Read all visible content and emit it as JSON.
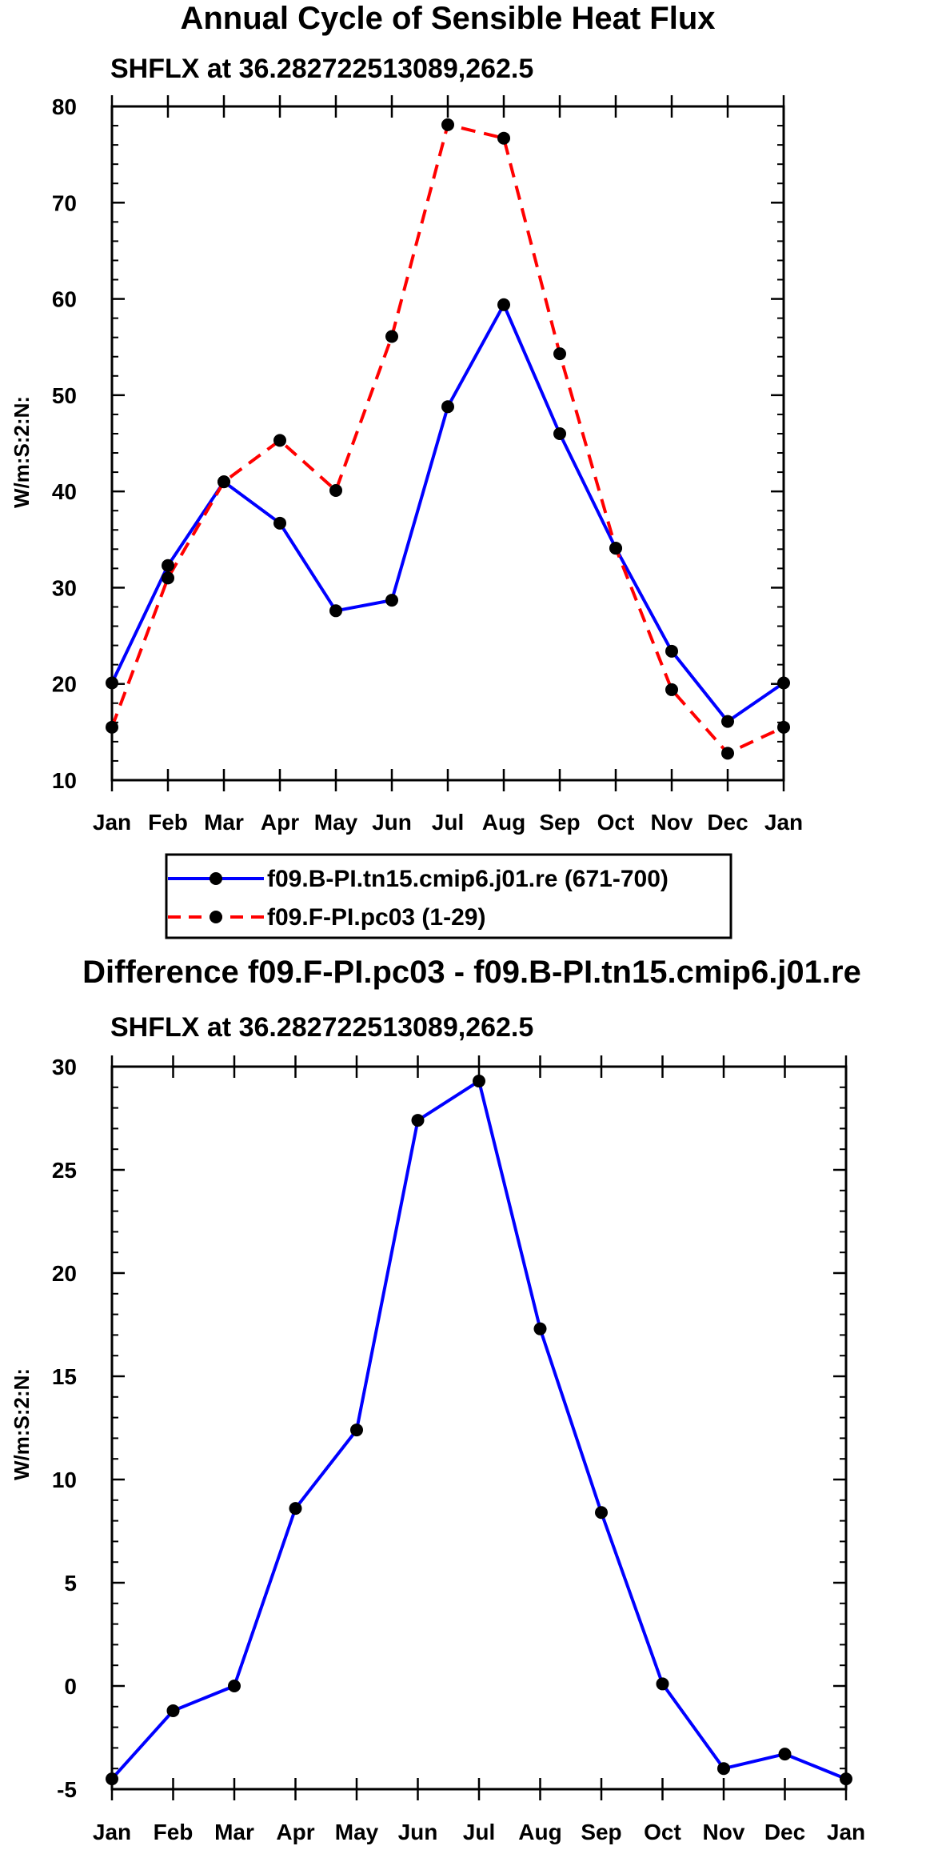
{
  "chart_data": [
    {
      "type": "line",
      "title": "Annual Cycle of Sensible Heat Flux",
      "subtitle": "SHFLX at 36.282722513089,262.5",
      "xlabel": "",
      "ylabel": "W/m:S:2:N:",
      "categories": [
        "Jan",
        "Feb",
        "Mar",
        "Apr",
        "May",
        "Jun",
        "Jul",
        "Aug",
        "Sep",
        "Oct",
        "Nov",
        "Dec",
        "Jan"
      ],
      "ylim": [
        10,
        80
      ],
      "yticks": [
        10,
        20,
        30,
        40,
        50,
        60,
        70,
        80
      ],
      "series": [
        {
          "name": "f09.B-PI.tn15.cmip6.j01.re (671-700)",
          "color": "#0000ff",
          "dash": "solid",
          "values": [
            20.1,
            32.3,
            41.0,
            36.7,
            27.6,
            28.7,
            48.8,
            59.4,
            46.0,
            34.1,
            23.4,
            16.1,
            20.1
          ]
        },
        {
          "name": "f09.F-PI.pc03 (1-29)",
          "color": "#ff0000",
          "dash": "dashed",
          "values": [
            15.5,
            31.0,
            41.0,
            45.3,
            40.1,
            56.1,
            78.1,
            76.7,
            54.3,
            34.1,
            19.4,
            12.8,
            15.5
          ]
        }
      ],
      "legend_position": "below"
    },
    {
      "type": "line",
      "title": "Difference f09.F-PI.pc03 - f09.B-PI.tn15.cmip6.j01.re",
      "subtitle": "SHFLX at 36.282722513089,262.5",
      "xlabel": "",
      "ylabel": "W/m:S:2:N:",
      "categories": [
        "Jan",
        "Feb",
        "Mar",
        "Apr",
        "May",
        "Jun",
        "Jul",
        "Aug",
        "Sep",
        "Oct",
        "Nov",
        "Dec",
        "Jan"
      ],
      "ylim": [
        -5,
        30
      ],
      "yticks": [
        -5,
        0,
        5,
        10,
        15,
        20,
        25,
        30
      ],
      "series": [
        {
          "name": "Difference",
          "color": "#0000ff",
          "dash": "solid",
          "values": [
            -4.5,
            -1.2,
            0.0,
            8.6,
            12.4,
            27.4,
            29.3,
            17.3,
            8.4,
            0.1,
            -4.0,
            -3.3,
            -4.5
          ]
        }
      ]
    }
  ]
}
